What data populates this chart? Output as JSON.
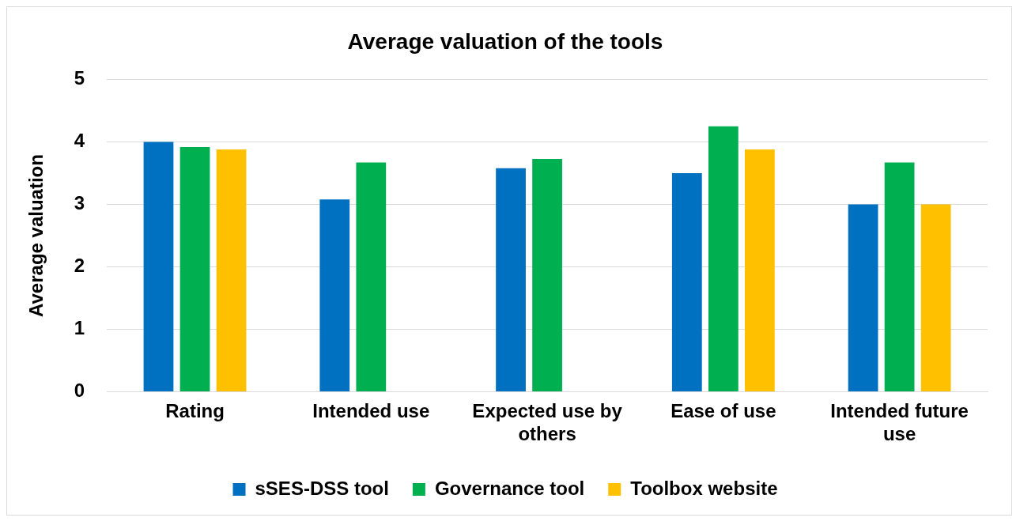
{
  "chart_data": {
    "type": "bar",
    "title": "Average valuation of the tools",
    "ylabel": "Average valuation",
    "categories": [
      "Rating",
      "Intended use",
      "Expected use by others",
      "Ease of use",
      "Intended future use"
    ],
    "series": [
      {
        "name": "sSES-DSS tool",
        "color": "#0070c0",
        "values": [
          4.0,
          3.08,
          3.58,
          3.5,
          3.0
        ]
      },
      {
        "name": "Governance tool",
        "color": "#00b050",
        "values": [
          3.92,
          3.67,
          3.73,
          4.25,
          3.67
        ]
      },
      {
        "name": "Toolbox website",
        "color": "#ffc000",
        "values": [
          3.88,
          null,
          null,
          3.88,
          3.0
        ]
      }
    ],
    "ylim": [
      0,
      5
    ],
    "yticks": [
      0,
      1,
      2,
      3,
      4,
      5
    ],
    "grid": "y",
    "legend": "bottom"
  }
}
